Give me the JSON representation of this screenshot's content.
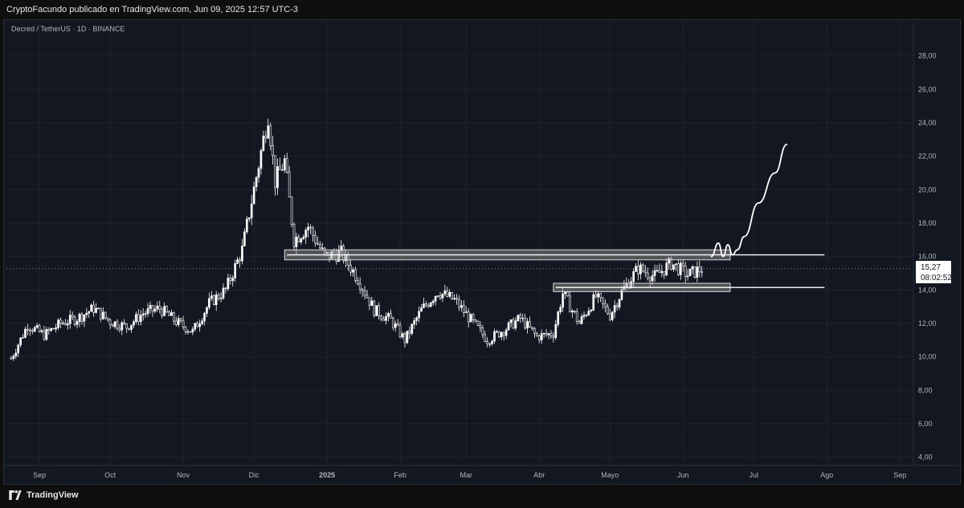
{
  "header": {
    "published_by": "CryptoFacundo publicado en TradingView.com, Jun 09, 2025 12:57 UTC-3"
  },
  "symbol_line": "Decred / TetherUS · 1D · BINANCE",
  "footer": {
    "brand": "TradingView"
  },
  "price_label": {
    "price": "15,27",
    "countdown": "08:02:52"
  },
  "colors": {
    "background": "#131722",
    "candle": "#ffffff",
    "zone_fill": "#9e9e9e",
    "grid": "#1f232d"
  },
  "chart_data": {
    "type": "line",
    "title": "Decred / TetherUS · 1D · BINANCE",
    "y_axis": {
      "side": "right",
      "range": [
        3.5,
        30
      ],
      "ticks": [
        "4,00",
        "6,00",
        "8,00",
        "10,00",
        "12,00",
        "14,00",
        "16,00",
        "18,00",
        "20,00",
        "22,00",
        "24,00",
        "26,00",
        "28,00"
      ]
    },
    "x_axis": {
      "labels": [
        "Sep",
        "Oct",
        "Nov",
        "Dic",
        "2025",
        "Feb",
        "Mar",
        "Abr",
        "Mayo",
        "Jun",
        "Jul",
        "Ago",
        "Sep"
      ],
      "bold_label": "2025"
    },
    "series": [
      {
        "type": "price",
        "points": [
          [
            "2024-08-20",
            9.9
          ],
          [
            "2024-08-27",
            11.9
          ],
          [
            "2024-09-03",
            11.3
          ],
          [
            "2024-09-10",
            12.0
          ],
          [
            "2024-09-17",
            12.3
          ],
          [
            "2024-09-24",
            12.9
          ],
          [
            "2024-10-01",
            12.1
          ],
          [
            "2024-10-08",
            11.8
          ],
          [
            "2024-10-15",
            12.6
          ],
          [
            "2024-10-22",
            12.9
          ],
          [
            "2024-10-29",
            12.1
          ],
          [
            "2024-11-05",
            11.5
          ],
          [
            "2024-11-12",
            13.2
          ],
          [
            "2024-11-19",
            14.0
          ],
          [
            "2024-11-26",
            16.4
          ],
          [
            "2024-12-03",
            21.5
          ],
          [
            "2024-12-07",
            24.5
          ],
          [
            "2024-12-10",
            20.5
          ],
          [
            "2024-12-14",
            21.7
          ],
          [
            "2024-12-18",
            17.0
          ],
          [
            "2024-12-24",
            17.8
          ],
          [
            "2024-12-31",
            16.0
          ],
          [
            "2025-01-07",
            16.2
          ],
          [
            "2025-01-14",
            14.7
          ],
          [
            "2025-01-21",
            12.8
          ],
          [
            "2025-01-28",
            12.2
          ],
          [
            "2025-02-03",
            11.0
          ],
          [
            "2025-02-10",
            12.8
          ],
          [
            "2025-02-17",
            13.9
          ],
          [
            "2025-02-24",
            13.4
          ],
          [
            "2025-03-03",
            12.2
          ],
          [
            "2025-03-10",
            11.0
          ],
          [
            "2025-03-17",
            11.6
          ],
          [
            "2025-03-24",
            12.3
          ],
          [
            "2025-03-31",
            11.2
          ],
          [
            "2025-04-07",
            11.4
          ],
          [
            "2025-04-11",
            13.8
          ],
          [
            "2025-04-18",
            12.0
          ],
          [
            "2025-04-25",
            13.6
          ],
          [
            "2025-05-01",
            12.5
          ],
          [
            "2025-05-06",
            13.9
          ],
          [
            "2025-05-13",
            15.3
          ],
          [
            "2025-05-20",
            14.8
          ],
          [
            "2025-05-27",
            15.6
          ],
          [
            "2025-06-03",
            14.9
          ],
          [
            "2025-06-09",
            15.27
          ]
        ]
      },
      {
        "type": "projection",
        "points": [
          [
            "2025-06-13",
            16.0
          ],
          [
            "2025-06-16",
            16.8
          ],
          [
            "2025-06-18",
            16.0
          ],
          [
            "2025-06-20",
            16.7
          ],
          [
            "2025-06-22",
            16.1
          ],
          [
            "2025-06-24",
            16.4
          ],
          [
            "2025-06-27",
            17.2
          ],
          [
            "2025-07-03",
            19.2
          ],
          [
            "2025-07-10",
            21.0
          ],
          [
            "2025-07-15",
            22.7
          ]
        ]
      }
    ],
    "zones": [
      {
        "from": "2024-12-14",
        "to": "2025-06-21",
        "low": 15.8,
        "high": 16.4
      },
      {
        "from": "2025-04-07",
        "to": "2025-06-21",
        "low": 13.9,
        "high": 14.4
      }
    ],
    "horizontal_lines": [
      {
        "price": 16.1,
        "from": "2024-12-15",
        "to": "2025-07-31"
      },
      {
        "price": 14.15,
        "from": "2025-04-08",
        "to": "2025-07-31"
      }
    ],
    "last_price": 15.27
  }
}
